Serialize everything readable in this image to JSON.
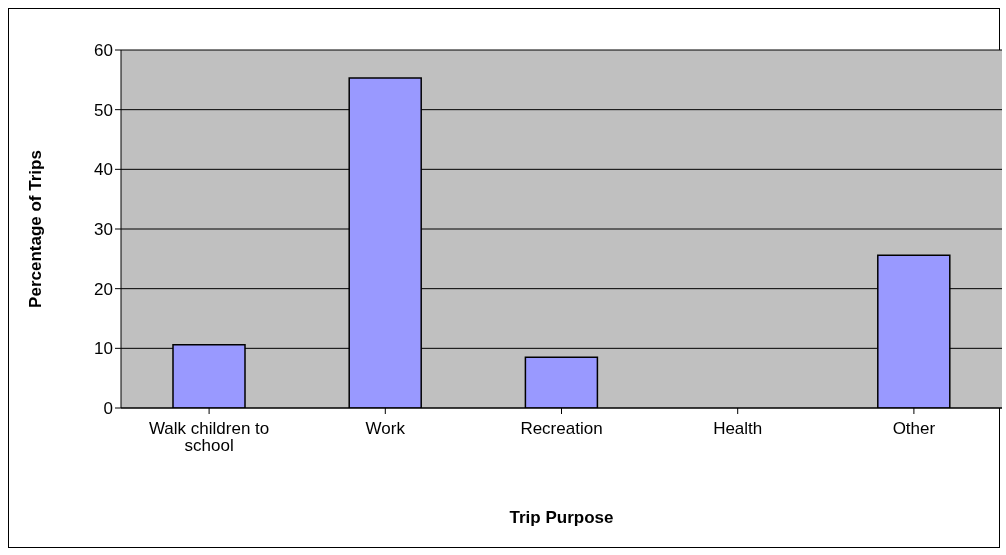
{
  "chart_data": {
    "type": "bar",
    "xlabel": "Trip Purpose",
    "ylabel": "Percentage of Trips",
    "categories": [
      "Walk children to school",
      "Work",
      "Recreation",
      "Health",
      "Other"
    ],
    "values": [
      10.6,
      55.3,
      8.5,
      0,
      25.6
    ],
    "color": "#9999ff",
    "ylim": [
      0,
      60
    ],
    "yticks": [
      0,
      10,
      20,
      30,
      40,
      50,
      60
    ],
    "grid": "y",
    "legend": false
  }
}
